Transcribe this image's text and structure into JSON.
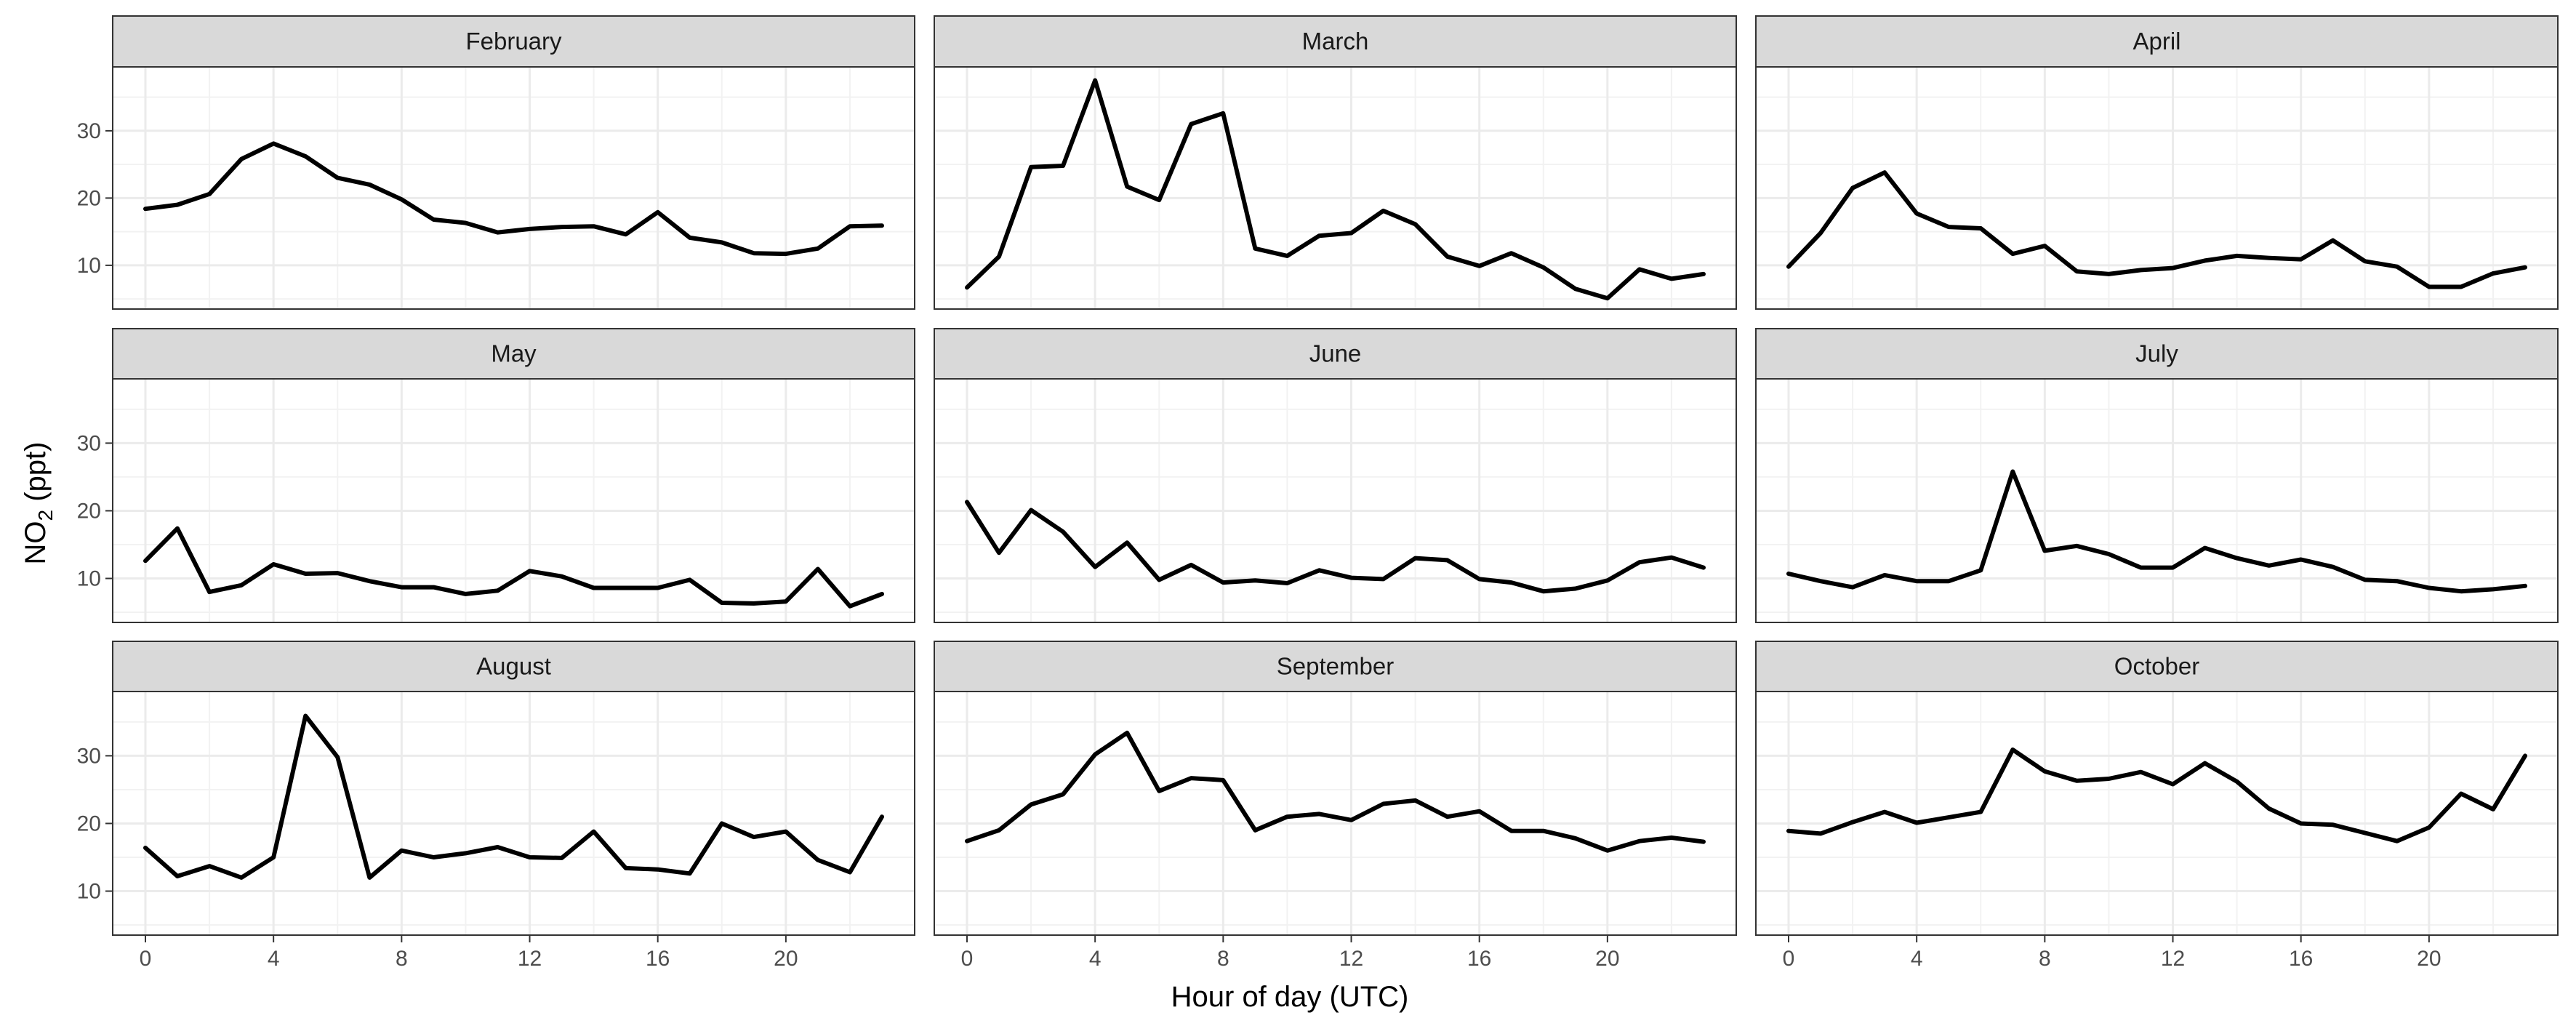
{
  "chart_data": {
    "type": "line",
    "layout": "facet grid, 3 rows x 3 columns, shared axes",
    "xlabel": "Hour of day (UTC)",
    "ylabel_main": "NO",
    "ylabel_subscript": "2",
    "ylabel_unit": " (ppt)",
    "xlim": [
      0,
      23
    ],
    "ylim": [
      3.5,
      39.5
    ],
    "x_ticks": [
      0,
      4,
      8,
      12,
      16,
      20
    ],
    "y_ticks": [
      10,
      20,
      30
    ],
    "grid": true,
    "line_color": "#000000",
    "x": [
      0,
      1,
      2,
      3,
      4,
      5,
      6,
      7,
      8,
      9,
      10,
      11,
      12,
      13,
      14,
      15,
      16,
      17,
      18,
      19,
      20,
      21,
      22,
      23
    ],
    "panels": [
      {
        "title": "February",
        "values": [
          18.4,
          19.0,
          20.6,
          25.8,
          28.1,
          26.2,
          23.0,
          22.0,
          19.8,
          16.8,
          16.3,
          14.9,
          15.4,
          15.7,
          15.8,
          14.6,
          17.9,
          14.1,
          13.4,
          11.8,
          11.7,
          12.5,
          15.8,
          15.9
        ]
      },
      {
        "title": "March",
        "values": [
          6.7,
          11.3,
          24.6,
          24.8,
          37.5,
          21.7,
          19.7,
          31.0,
          32.6,
          12.5,
          11.4,
          14.4,
          14.8,
          18.1,
          16.1,
          11.3,
          9.9,
          11.8,
          9.7,
          6.5,
          5.1,
          9.4,
          8.0,
          8.7
        ]
      },
      {
        "title": "April",
        "values": [
          9.8,
          14.8,
          21.5,
          23.8,
          17.7,
          15.7,
          15.5,
          11.7,
          12.9,
          9.1,
          8.7,
          9.3,
          9.6,
          10.7,
          11.4,
          11.1,
          10.9,
          13.7,
          10.6,
          9.8,
          6.8,
          6.8,
          8.8,
          9.7
        ]
      },
      {
        "title": "May",
        "values": [
          12.6,
          17.4,
          8.0,
          9.0,
          12.1,
          10.7,
          10.8,
          9.6,
          8.7,
          8.7,
          7.7,
          8.2,
          11.1,
          10.3,
          8.6,
          8.6,
          8.6,
          9.8,
          6.4,
          6.3,
          6.6,
          11.4,
          5.9,
          7.7
        ]
      },
      {
        "title": "June",
        "values": [
          21.3,
          13.8,
          20.1,
          16.9,
          11.7,
          15.3,
          9.8,
          12.0,
          9.4,
          9.7,
          9.3,
          11.2,
          10.1,
          9.9,
          13.0,
          12.7,
          9.9,
          9.4,
          8.1,
          8.5,
          9.7,
          12.4,
          13.1,
          11.6
        ]
      },
      {
        "title": "July",
        "values": [
          10.7,
          9.6,
          8.7,
          10.5,
          9.6,
          9.6,
          11.2,
          25.8,
          14.1,
          14.8,
          13.6,
          11.6,
          11.6,
          14.5,
          13.0,
          11.9,
          12.8,
          11.7,
          9.8,
          9.6,
          8.6,
          8.1,
          8.4,
          8.9
        ]
      },
      {
        "title": "August",
        "values": [
          16.4,
          12.2,
          13.7,
          12.0,
          15.0,
          35.9,
          29.8,
          12.0,
          16.0,
          15.0,
          15.6,
          16.5,
          15.0,
          14.9,
          18.8,
          13.4,
          13.2,
          12.6,
          20.0,
          18.0,
          18.8,
          14.6,
          12.8,
          21.0
        ]
      },
      {
        "title": "September",
        "values": [
          17.4,
          19.0,
          22.8,
          24.3,
          30.2,
          33.4,
          24.8,
          26.7,
          26.4,
          19.0,
          21.0,
          21.4,
          20.5,
          22.9,
          23.4,
          21.0,
          21.8,
          18.9,
          18.9,
          17.8,
          16.0,
          17.4,
          17.9,
          17.3
        ]
      },
      {
        "title": "October",
        "values": [
          18.9,
          18.5,
          20.2,
          21.7,
          20.1,
          20.9,
          21.7,
          30.9,
          27.7,
          26.3,
          26.6,
          27.6,
          25.8,
          28.9,
          26.2,
          22.2,
          20.0,
          19.8,
          18.6,
          17.4,
          19.4,
          24.4,
          22.1,
          30.0
        ]
      }
    ]
  }
}
